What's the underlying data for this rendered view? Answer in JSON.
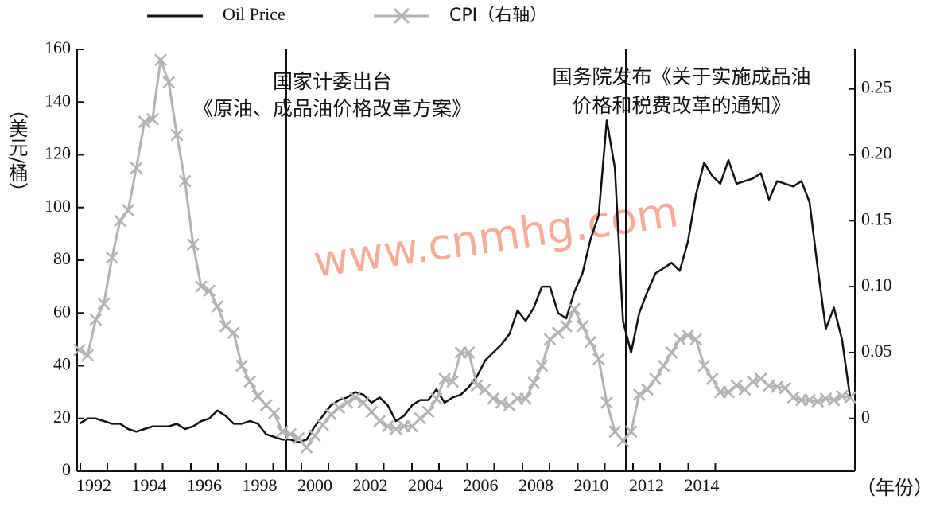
{
  "chart_data": {
    "type": "line",
    "y_label": "（美元/桶）",
    "x_label": "（年份）",
    "watermark": "www.cnmhg.com",
    "annotations": [
      "国家计委出台",
      "《原油、成品油价格改革方案》",
      "国务院发布《关于实施成品油",
      "价格和税费改革的通知》"
    ],
    "xtick_labels": [
      "1992",
      "1994",
      "1996",
      "1998",
      "2000",
      "2002",
      "2004",
      "2006",
      "2008",
      "2010",
      "2012",
      "2014"
    ],
    "ylim": [
      0,
      160
    ],
    "yticks": [
      0,
      20,
      40,
      60,
      80,
      100,
      120,
      140,
      160
    ],
    "y2lim": [
      -0.04,
      0.28
    ],
    "y2ticks": [
      0,
      0.05,
      {
        "value": 0.1,
        "label": "0.10"
      },
      0.15,
      {
        "value": 0.2,
        "label": "0.20"
      },
      0.25
    ],
    "series": [
      {
        "name": "Oil Price",
        "color": "#111111",
        "values": [
          18,
          20,
          20,
          19,
          18,
          18,
          16,
          15,
          16,
          17,
          17,
          17,
          18,
          16,
          17,
          19,
          20,
          23,
          21,
          18,
          18,
          19,
          18,
          14,
          13,
          12,
          12,
          11,
          12,
          17,
          21,
          25,
          27,
          28,
          30,
          29,
          26,
          28,
          25,
          19,
          21,
          25,
          27,
          27,
          31,
          26,
          28,
          29,
          32,
          36,
          42,
          45,
          48,
          52,
          61,
          57,
          62,
          70,
          70,
          60,
          58,
          68,
          75,
          88,
          97,
          133,
          115,
          57,
          45,
          60,
          68,
          75,
          77,
          79,
          76,
          87,
          105,
          117,
          112,
          109,
          118,
          109,
          110,
          111,
          113,
          103,
          110,
          109,
          108,
          110,
          102,
          77,
          54,
          62,
          50,
          28
        ]
      },
      {
        "name": "CPI（右轴）",
        "color": "#b3b3b3",
        "axis": "y2",
        "values": [
          0.052,
          0.048,
          0.075,
          0.087,
          0.122,
          0.15,
          0.158,
          0.19,
          0.225,
          0.227,
          0.272,
          0.255,
          0.215,
          0.18,
          0.132,
          0.1,
          0.097,
          0.085,
          0.07,
          0.065,
          0.04,
          0.028,
          0.017,
          0.01,
          0.004,
          -0.01,
          -0.012,
          -0.015,
          -0.022,
          -0.013,
          -0.005,
          0.003,
          0.008,
          0.012,
          0.016,
          0.012,
          0.005,
          -0.002,
          -0.006,
          -0.008,
          -0.006,
          -0.006,
          0,
          0.005,
          0.015,
          0.03,
          0.028,
          0.05,
          0.05,
          0.025,
          0.022,
          0.015,
          0.012,
          0.01,
          0.015,
          0.015,
          0.027,
          0.04,
          0.06,
          0.065,
          0.07,
          0.083,
          0.07,
          0.058,
          0.045,
          0.012,
          -0.01,
          -0.017,
          -0.01,
          0.018,
          0.022,
          0.03,
          0.04,
          0.05,
          0.06,
          0.063,
          0.06,
          0.04,
          0.03,
          0.02,
          0.02,
          0.025,
          0.022,
          0.028,
          0.03,
          0.025,
          0.024,
          0.023,
          0.016,
          0.014,
          0.014,
          0.013,
          0.015,
          0.014,
          0.017,
          0.016
        ]
      }
    ]
  }
}
